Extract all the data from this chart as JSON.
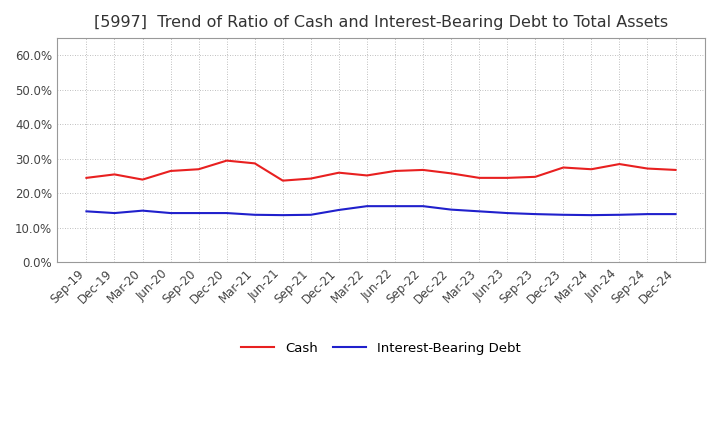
{
  "title": "[5997]  Trend of Ratio of Cash and Interest-Bearing Debt to Total Assets",
  "x_labels": [
    "Sep-19",
    "Dec-19",
    "Mar-20",
    "Jun-20",
    "Sep-20",
    "Dec-20",
    "Mar-21",
    "Jun-21",
    "Sep-21",
    "Dec-21",
    "Mar-22",
    "Jun-22",
    "Sep-22",
    "Dec-22",
    "Mar-23",
    "Jun-23",
    "Sep-23",
    "Dec-23",
    "Mar-24",
    "Jun-24",
    "Sep-24",
    "Dec-24"
  ],
  "cash": [
    0.245,
    0.255,
    0.24,
    0.265,
    0.27,
    0.295,
    0.287,
    0.237,
    0.243,
    0.26,
    0.252,
    0.265,
    0.268,
    0.258,
    0.245,
    0.245,
    0.248,
    0.275,
    0.27,
    0.285,
    0.272,
    0.268
  ],
  "interest_bearing_debt": [
    0.148,
    0.143,
    0.15,
    0.143,
    0.143,
    0.143,
    0.138,
    0.137,
    0.138,
    0.152,
    0.163,
    0.163,
    0.163,
    0.153,
    0.148,
    0.143,
    0.14,
    0.138,
    0.137,
    0.138,
    0.14,
    0.14
  ],
  "cash_color": "#e82020",
  "ibd_color": "#2020cc",
  "background_color": "#ffffff",
  "plot_bg_color": "#ffffff",
  "grid_color": "#aaaaaa",
  "ylim": [
    0.0,
    0.65
  ],
  "yticks": [
    0.0,
    0.1,
    0.2,
    0.3,
    0.4,
    0.5,
    0.6
  ],
  "legend_cash": "Cash",
  "legend_ibd": "Interest-Bearing Debt",
  "title_fontsize": 11.5,
  "axis_fontsize": 8.5,
  "legend_fontsize": 9.5
}
